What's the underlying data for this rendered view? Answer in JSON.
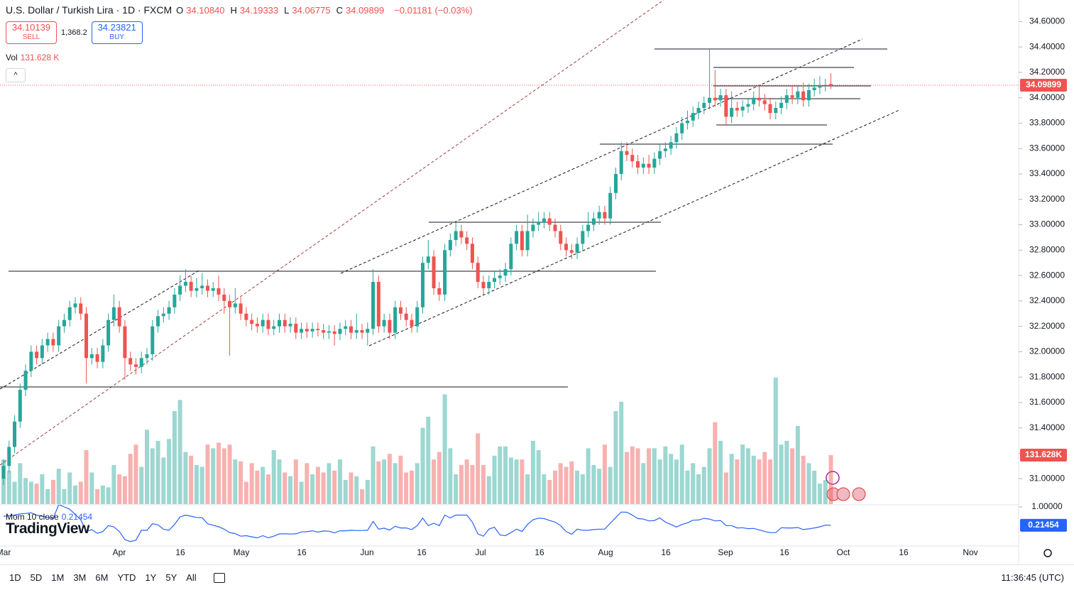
{
  "ui": {
    "symbol": "U.S. Dollar / Turkish Lira · 1D · FXCM",
    "ohlc_keys": [
      "O",
      "H",
      "L",
      "C"
    ],
    "ohlc_values": [
      "34.10840",
      "34.19333",
      "34.06775",
      "34.09899"
    ],
    "change": "−0.01181 (−0.03%)",
    "sell_price": "34.10139",
    "sell": "SELL",
    "spread": "1,368.2",
    "buy_price": "34.23821",
    "buy": "BUY",
    "vol_label": "Vol",
    "vol_value": "131.628 K",
    "vol_tag": "131.628K",
    "mom_label": "Mom 10 close",
    "logo": "TradingView",
    "x_labels": [
      "Mar",
      "Apr",
      "16",
      "May",
      "16",
      "Jun",
      "16",
      "Jul",
      "16",
      "Aug",
      "16",
      "Sep",
      "16",
      "Oct",
      "16",
      "Nov"
    ],
    "ranges": [
      "1D",
      "5D",
      "1M",
      "3M",
      "6M",
      "YTD",
      "1Y",
      "5Y",
      "All"
    ],
    "clock": "11:36:45 (UTC)"
  },
  "chart_data": {
    "type": "candlestick",
    "up_color": "#26a69a",
    "down_color": "#ef5350",
    "ylim": [
      30.8,
      34.77
    ],
    "yticks": [
      {
        "value": 34.6,
        "label": "34.60000"
      },
      {
        "value": 34.4,
        "label": "34.40000"
      },
      {
        "value": 34.2,
        "label": "34.20000"
      },
      {
        "value": 34.0,
        "label": "34.00000"
      },
      {
        "value": 33.8,
        "label": "33.80000"
      },
      {
        "value": 33.6,
        "label": "33.60000"
      },
      {
        "value": 33.4,
        "label": "33.40000"
      },
      {
        "value": 33.2,
        "label": "33.20000"
      },
      {
        "value": 33.0,
        "label": "33.00000"
      },
      {
        "value": 32.8,
        "label": "32.80000"
      },
      {
        "value": 32.6,
        "label": "32.60000"
      },
      {
        "value": 32.4,
        "label": "32.40000"
      },
      {
        "value": 32.2,
        "label": "32.20000"
      },
      {
        "value": 32.0,
        "label": "32.00000"
      },
      {
        "value": 31.8,
        "label": "31.80000"
      },
      {
        "value": 31.6,
        "label": "31.60000"
      },
      {
        "value": 31.4,
        "label": "31.40000"
      },
      {
        "value": 31.2,
        "label": "31.20000"
      },
      {
        "value": 31.0,
        "label": "31.00000"
      }
    ],
    "open": [
      31.0,
      31.1,
      31.25,
      31.45,
      31.7,
      31.85,
      32.0,
      31.95,
      32.05,
      32.1,
      32.05,
      32.2,
      32.25,
      32.35,
      32.38,
      32.3,
      31.95,
      31.98,
      31.92,
      32.05,
      32.25,
      32.35,
      32.2,
      31.95,
      31.9,
      31.88,
      31.95,
      31.98,
      32.2,
      32.28,
      32.3,
      32.35,
      32.45,
      32.52,
      32.55,
      32.48,
      32.5,
      32.52,
      32.48,
      32.5,
      32.45,
      32.4,
      32.35,
      32.38,
      32.3,
      32.25,
      32.22,
      32.2,
      32.25,
      32.18,
      32.2,
      32.25,
      32.2,
      32.22,
      32.15,
      32.18,
      32.16,
      32.18,
      32.17,
      32.15,
      32.16,
      32.14,
      32.18,
      32.2,
      32.15,
      32.17,
      32.15,
      32.18,
      32.55,
      32.2,
      32.25,
      32.15,
      32.35,
      32.3,
      32.25,
      32.2,
      32.35,
      32.7,
      32.75,
      32.5,
      32.45,
      32.8,
      32.88,
      32.95,
      32.9,
      32.85,
      32.7,
      32.55,
      32.5,
      32.55,
      32.58,
      32.6,
      32.65,
      32.85,
      32.95,
      32.8,
      32.95,
      33.0,
      33.02,
      33.05,
      33.0,
      32.95,
      32.85,
      32.8,
      32.78,
      32.85,
      32.95,
      33.0,
      33.05,
      33.1,
      33.05,
      33.25,
      33.4,
      33.58,
      33.55,
      33.5,
      33.45,
      33.48,
      33.45,
      33.52,
      33.58,
      33.6,
      33.65,
      33.72,
      33.8,
      33.82,
      33.88,
      33.92,
      33.96,
      34.0,
      33.98,
      34.02,
      33.85,
      33.92,
      33.9,
      33.93,
      33.95,
      34.0,
      33.98,
      33.95,
      33.88,
      33.92,
      33.96,
      34.02,
      34.0,
      34.05,
      33.98,
      34.06,
      34.08,
      34.1,
      34.1084
    ],
    "high": [
      31.15,
      31.3,
      31.5,
      31.75,
      31.9,
      32.05,
      32.05,
      32.1,
      32.15,
      32.15,
      32.25,
      32.3,
      32.4,
      32.43,
      32.43,
      32.35,
      32.03,
      32.03,
      32.1,
      32.3,
      32.45,
      32.4,
      32.25,
      32.0,
      31.95,
      32.0,
      32.03,
      32.25,
      32.33,
      32.35,
      32.4,
      32.5,
      32.6,
      32.65,
      32.6,
      32.58,
      32.62,
      32.57,
      32.55,
      32.6,
      32.5,
      32.45,
      32.5,
      32.43,
      32.35,
      32.3,
      32.27,
      32.3,
      32.3,
      32.25,
      32.3,
      32.3,
      32.27,
      32.27,
      32.23,
      32.23,
      32.23,
      32.23,
      32.22,
      32.21,
      32.21,
      32.23,
      32.25,
      32.25,
      32.3,
      32.22,
      32.23,
      32.65,
      32.6,
      32.3,
      32.3,
      32.4,
      32.4,
      32.35,
      32.3,
      32.4,
      32.75,
      32.88,
      32.8,
      32.55,
      32.85,
      32.93,
      33.02,
      33.0,
      32.95,
      32.9,
      32.75,
      32.6,
      32.6,
      32.63,
      32.65,
      32.7,
      32.9,
      33.0,
      33.0,
      33.08,
      33.05,
      33.1,
      33.1,
      33.1,
      33.05,
      33.0,
      32.9,
      32.85,
      32.9,
      33.0,
      33.1,
      33.1,
      33.15,
      33.15,
      33.3,
      33.45,
      33.65,
      33.65,
      33.6,
      33.55,
      33.53,
      33.55,
      33.57,
      33.63,
      33.65,
      33.7,
      33.77,
      33.85,
      33.9,
      33.93,
      33.97,
      34.01,
      34.38,
      34.22,
      34.07,
      34.07,
      34.05,
      33.97,
      33.98,
      34.0,
      34.05,
      34.1,
      34.03,
      34.0,
      33.97,
      34.01,
      34.07,
      34.1,
      34.1,
      34.12,
      34.11,
      34.15,
      34.17,
      34.15,
      34.19333
    ],
    "low": [
      30.95,
      31.05,
      31.2,
      31.4,
      31.65,
      31.8,
      31.9,
      31.9,
      32.0,
      32.0,
      32.0,
      32.15,
      32.2,
      32.3,
      32.25,
      31.75,
      31.9,
      31.87,
      31.87,
      32.0,
      32.2,
      32.15,
      31.78,
      31.85,
      31.82,
      31.83,
      31.9,
      31.93,
      32.15,
      32.23,
      32.25,
      32.3,
      32.4,
      32.47,
      32.43,
      32.43,
      32.45,
      32.43,
      32.43,
      32.4,
      32.3,
      31.97,
      32.3,
      32.25,
      32.2,
      32.17,
      32.15,
      32.15,
      32.13,
      32.13,
      32.15,
      32.15,
      32.15,
      32.1,
      32.1,
      32.11,
      32.11,
      32.12,
      32.1,
      32.1,
      32.05,
      32.09,
      32.13,
      32.1,
      32.1,
      32.1,
      32.05,
      32.13,
      32.15,
      32.15,
      32.1,
      32.1,
      32.25,
      32.2,
      32.15,
      32.15,
      32.3,
      32.65,
      32.45,
      32.4,
      32.4,
      32.75,
      32.83,
      32.85,
      32.8,
      32.65,
      32.5,
      32.45,
      32.45,
      32.5,
      32.53,
      32.55,
      32.6,
      32.8,
      32.75,
      32.75,
      32.9,
      32.95,
      32.97,
      32.95,
      32.9,
      32.8,
      32.75,
      32.73,
      32.73,
      32.8,
      32.9,
      32.95,
      33.0,
      33.0,
      33.0,
      33.2,
      33.35,
      33.5,
      33.45,
      33.4,
      33.4,
      33.4,
      33.4,
      33.47,
      33.53,
      33.55,
      33.6,
      33.67,
      33.75,
      33.77,
      33.83,
      33.87,
      33.91,
      33.93,
      33.93,
      33.78,
      33.8,
      33.85,
      33.85,
      33.88,
      33.9,
      33.93,
      33.9,
      33.83,
      33.83,
      33.87,
      33.91,
      33.95,
      33.95,
      33.93,
      33.93,
      34.01,
      34.03,
      34.05,
      34.06775
    ],
    "close": [
      31.1,
      31.25,
      31.45,
      31.7,
      31.85,
      32.0,
      31.95,
      32.05,
      32.1,
      32.05,
      32.2,
      32.25,
      32.35,
      32.38,
      32.3,
      31.95,
      31.98,
      31.92,
      32.05,
      32.25,
      32.35,
      32.2,
      31.95,
      31.9,
      31.88,
      31.95,
      31.98,
      32.2,
      32.28,
      32.3,
      32.35,
      32.45,
      32.52,
      32.55,
      32.48,
      32.5,
      32.52,
      32.48,
      32.5,
      32.45,
      32.4,
      32.35,
      32.38,
      32.3,
      32.25,
      32.22,
      32.2,
      32.25,
      32.18,
      32.2,
      32.25,
      32.2,
      32.22,
      32.15,
      32.18,
      32.16,
      32.18,
      32.17,
      32.15,
      32.16,
      32.14,
      32.18,
      32.2,
      32.15,
      32.17,
      32.15,
      32.18,
      32.55,
      32.2,
      32.25,
      32.15,
      32.35,
      32.3,
      32.25,
      32.2,
      32.35,
      32.7,
      32.75,
      32.5,
      32.45,
      32.8,
      32.88,
      32.95,
      32.9,
      32.85,
      32.7,
      32.55,
      32.5,
      32.55,
      32.58,
      32.6,
      32.65,
      32.85,
      32.95,
      32.8,
      32.95,
      33.0,
      33.02,
      33.05,
      33.0,
      32.95,
      32.85,
      32.8,
      32.78,
      32.85,
      32.95,
      33.0,
      33.05,
      33.1,
      33.05,
      33.25,
      33.4,
      33.58,
      33.55,
      33.5,
      33.45,
      33.48,
      33.45,
      33.52,
      33.58,
      33.6,
      33.65,
      33.72,
      33.8,
      33.82,
      33.88,
      33.92,
      33.96,
      34.0,
      33.98,
      34.02,
      33.85,
      33.92,
      33.9,
      33.93,
      33.95,
      34.0,
      33.98,
      33.95,
      33.88,
      33.92,
      33.96,
      34.02,
      34.0,
      34.05,
      33.98,
      34.06,
      34.08,
      34.1,
      34.1,
      34.09899
    ],
    "volume": {
      "name": "Vol",
      "values": [
        120,
        90,
        60,
        110,
        70,
        60,
        55,
        80,
        40,
        65,
        95,
        40,
        85,
        50,
        60,
        145,
        85,
        40,
        50,
        45,
        105,
        80,
        75,
        135,
        160,
        100,
        200,
        150,
        170,
        125,
        175,
        250,
        280,
        140,
        130,
        105,
        100,
        160,
        150,
        165,
        150,
        160,
        120,
        115,
        60,
        110,
        90,
        100,
        80,
        145,
        120,
        85,
        75,
        120,
        60,
        110,
        80,
        100,
        85,
        110,
        90,
        120,
        65,
        85,
        75,
        40,
        65,
        155,
        115,
        120,
        135,
        110,
        130,
        85,
        90,
        110,
        205,
        235,
        120,
        140,
        295,
        150,
        80,
        105,
        120,
        105,
        190,
        105,
        75,
        130,
        155,
        155,
        125,
        120,
        120,
        80,
        170,
        145,
        80,
        65,
        90,
        110,
        100,
        115,
        90,
        80,
        150,
        105,
        95,
        160,
        100,
        250,
        275,
        140,
        155,
        150,
        110,
        150,
        150,
        120,
        155,
        135,
        120,
        160,
        90,
        110,
        80,
        100,
        150,
        220,
        170,
        85,
        135,
        120,
        160,
        150,
        130,
        120,
        140,
        120,
        340,
        160,
        170,
        150,
        210,
        130,
        110,
        90,
        55,
        65,
        131.628
      ]
    },
    "momentum": {
      "name": "Mom 10 close",
      "color": "#2962ff",
      "ylim": [
        -0.64,
        1.09
      ],
      "yticks": [
        {
          "value": 1,
          "label": "1.00000"
        }
      ],
      "values": [
        0.6,
        0.62,
        0.65,
        0.7,
        0.72,
        0.75,
        0.65,
        0.6,
        0.55,
        0.5,
        1.1,
        1.0,
        0.9,
        0.68,
        0.45,
        -0.05,
        0.03,
        -0.13,
        -0.05,
        0.2,
        0.15,
        -0.05,
        -0.4,
        -0.48,
        -0.42,
        0.0,
        0.0,
        0.28,
        0.23,
        0.05,
        0.0,
        0.25,
        0.57,
        0.65,
        0.6,
        0.55,
        0.54,
        0.28,
        0.22,
        0.15,
        0.05,
        -0.1,
        -0.14,
        -0.25,
        -0.23,
        -0.28,
        -0.32,
        -0.23,
        -0.32,
        -0.25,
        -0.15,
        -0.15,
        -0.16,
        -0.15,
        -0.07,
        -0.06,
        -0.02,
        -0.08,
        -0.03,
        -0.04,
        -0.11,
        -0.02,
        -0.02,
        0.0,
        -0.01,
        -0.01,
        0.0,
        0.38,
        0.05,
        0.09,
        0.01,
        0.17,
        0.1,
        0.1,
        0.03,
        0.2,
        0.52,
        0.2,
        0.3,
        0.2,
        0.65,
        0.53,
        0.65,
        0.65,
        0.65,
        0.35,
        -0.15,
        -0.25,
        0.05,
        0.13,
        -0.2,
        -0.23,
        -0.1,
        0.05,
        -0.05,
        0.25,
        0.45,
        0.52,
        0.5,
        0.42,
        0.35,
        0.2,
        -0.05,
        -0.17,
        0.05,
        0.0,
        0.0,
        0.03,
        0.05,
        0.05,
        0.3,
        0.55,
        0.78,
        0.77,
        0.65,
        0.5,
        0.48,
        0.4,
        0.42,
        0.53,
        0.35,
        0.25,
        0.14,
        0.25,
        0.32,
        0.43,
        0.44,
        0.51,
        0.48,
        0.4,
        0.42,
        0.2,
        0.2,
        0.1,
        0.11,
        0.07,
        0.08,
        0.02,
        -0.05,
        -0.1,
        -0.1,
        0.11,
        0.1,
        0.1,
        0.12,
        0.03,
        0.06,
        0.1,
        0.15,
        0.22,
        0.21454
      ]
    }
  }
}
